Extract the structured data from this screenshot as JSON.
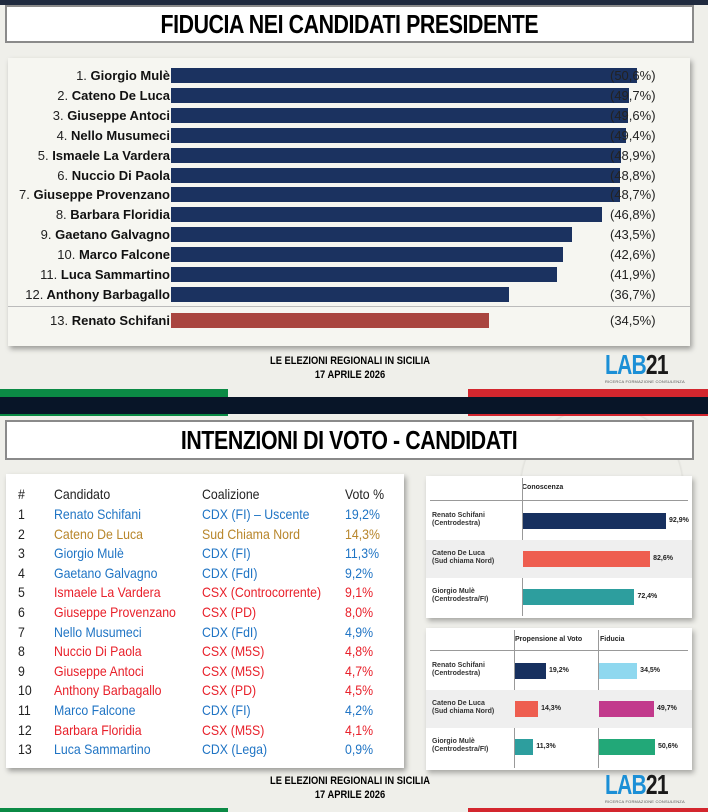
{
  "section1": {
    "title": "FIDUCIA NEI CANDIDATI PRESIDENTE",
    "rows": [
      {
        "rank": "1.",
        "name": "Giorgio Mulè",
        "value": 50.6,
        "label": "(50,6%)"
      },
      {
        "rank": "2.",
        "name": "Cateno De Luca",
        "value": 49.7,
        "label": "(49,7%)"
      },
      {
        "rank": "3.",
        "name": "Giuseppe Antoci",
        "value": 49.6,
        "label": "(49,6%)"
      },
      {
        "rank": "4.",
        "name": "Nello Musumeci",
        "value": 49.4,
        "label": "(49,4%)"
      },
      {
        "rank": "5.",
        "name": "Ismaele La Vardera",
        "value": 48.9,
        "label": "(48,9%)"
      },
      {
        "rank": "6.",
        "name": "Nuccio Di Paola",
        "value": 48.8,
        "label": "(48,8%)"
      },
      {
        "rank": "7.",
        "name": "Giuseppe Provenzano",
        "value": 48.7,
        "label": "(48,7%)"
      },
      {
        "rank": "8.",
        "name": "Barbara Floridia",
        "value": 46.8,
        "label": "(46,8%)"
      },
      {
        "rank": "9.",
        "name": "Gaetano Galvagno",
        "value": 43.5,
        "label": "(43,5%)"
      },
      {
        "rank": "10.",
        "name": "Marco Falcone",
        "value": 42.6,
        "label": "(42,6%)"
      },
      {
        "rank": "11.",
        "name": "Luca Sammartino",
        "value": 41.9,
        "label": "(41,9%)"
      },
      {
        "rank": "12.",
        "name": "Anthony Barbagallo",
        "value": 36.7,
        "label": "(36,7%)"
      },
      {
        "rank": "13.",
        "name": "Renato Schifani",
        "value": 34.5,
        "label": "(34,5%)"
      }
    ],
    "footer_line1": "LE ELEZIONI REGIONALI IN SICILIA",
    "footer_line2": "17 APRILE 2026"
  },
  "section2": {
    "title": "INTENZIONI DI VOTO - CANDIDATI",
    "table": {
      "headers": {
        "num": "#",
        "name": "Candidato",
        "coalition": "Coalizione",
        "vote": "Voto %"
      },
      "rows": [
        {
          "num": "1",
          "name": "Renato Schifani",
          "coalition": "CDX (FI) – Uscente",
          "vote": "19,2%",
          "color": "#1f74c4"
        },
        {
          "num": "2",
          "name": "Cateno De Luca",
          "coalition": "Sud Chiama Nord",
          "vote": "14,3%",
          "color": "#b8862b"
        },
        {
          "num": "3",
          "name": "Giorgio Mulè",
          "coalition": "CDX (FI)",
          "vote": "11,3%",
          "color": "#1f74c4"
        },
        {
          "num": "4",
          "name": "Gaetano Galvagno",
          "coalition": "CDX (FdI)",
          "vote": "9,2%",
          "color": "#1f74c4"
        },
        {
          "num": "5",
          "name": "Ismaele La Vardera",
          "coalition": "CSX (Controcorrente)",
          "vote": "9,1%",
          "color": "#e8202a"
        },
        {
          "num": "6",
          "name": "Giuseppe Provenzano",
          "coalition": "CSX (PD)",
          "vote": "8,0%",
          "color": "#e8202a"
        },
        {
          "num": "7",
          "name": "Nello Musumeci",
          "coalition": "CDX (FdI)",
          "vote": "4,9%",
          "color": "#1f74c4"
        },
        {
          "num": "8",
          "name": "Nuccio Di Paola",
          "coalition": "CSX (M5S)",
          "vote": "4,8%",
          "color": "#e8202a"
        },
        {
          "num": "9",
          "name": "Giuseppe Antoci",
          "coalition": "CSX (M5S)",
          "vote": "4,7%",
          "color": "#e8202a"
        },
        {
          "num": "10",
          "name": "Anthony Barbagallo",
          "coalition": "CSX (PD)",
          "vote": "4,5%",
          "color": "#e8202a"
        },
        {
          "num": "11",
          "name": "Marco Falcone",
          "coalition": "CDX (FI)",
          "vote": "4,2%",
          "color": "#1f74c4"
        },
        {
          "num": "12",
          "name": "Barbara Floridia",
          "coalition": "CSX (M5S)",
          "vote": "4,1%",
          "color": "#e8202a"
        },
        {
          "num": "13",
          "name": "Luca Sammartino",
          "coalition": "CDX (Lega)",
          "vote": "0,9%",
          "color": "#1f74c4"
        }
      ]
    },
    "mini_conoscenza": {
      "header": "Conoscenza",
      "rows": [
        {
          "name": "Renato Schifani",
          "sub": "(Centrodestra)",
          "value": 92.9,
          "label": "92,9%",
          "color": "#17305f"
        },
        {
          "name": "Cateno De Luca",
          "sub": "(Sud chiama Nord)",
          "value": 82.6,
          "label": "82,6%",
          "color": "#ee5e50"
        },
        {
          "name": "Giorgio Mulè",
          "sub": "(Centrodestra/FI)",
          "value": 72.4,
          "label": "72,4%",
          "color": "#2d9e9e"
        }
      ]
    },
    "mini_propensione": {
      "header_vote": "Propensione al Voto",
      "header_trust": "Fiducia",
      "rows": [
        {
          "name": "Renato Schifani",
          "sub": "(Centrodestra)",
          "vote": 19.2,
          "vote_label": "19,2%",
          "vote_color": "#17305f",
          "trust": 34.5,
          "trust_label": "34,5%",
          "trust_color": "#8fd8ef"
        },
        {
          "name": "Cateno De Luca",
          "sub": "(Sud chiama Nord)",
          "vote": 14.3,
          "vote_label": "14,3%",
          "vote_color": "#ee5e50",
          "trust": 49.7,
          "trust_label": "49,7%",
          "trust_color": "#c23a8c"
        },
        {
          "name": "Giorgio Mulè",
          "sub": "(Centrodestra/FI)",
          "vote": 11.3,
          "vote_label": "11,3%",
          "vote_color": "#2d9e9e",
          "trust": 50.6,
          "trust_label": "50,6%",
          "trust_color": "#22a878"
        }
      ]
    },
    "footer_line1": "LE ELEZIONI REGIONALI IN SICILIA",
    "footer_line2": "17 APRILE 2026"
  },
  "logo": {
    "lab": "LAB",
    "num": "21",
    "tagline": "RICERCA FORMAZIONE CONSULENZA",
    "color_lab": "#1b8fd6"
  },
  "colors": {
    "navy_bar": "#1b3260",
    "highlight_bar": "#a9453f",
    "flag_green": "#0b8a45",
    "flag_red": "#d3262e",
    "band": "#081528"
  },
  "chart_data": [
    {
      "type": "bar",
      "orientation": "horizontal",
      "title": "FIDUCIA NEI CANDIDATI PRESIDENTE",
      "categories": [
        "1. Giorgio Mulè",
        "2. Cateno De Luca",
        "3. Giuseppe Antoci",
        "4. Nello Musumeci",
        "5. Ismaele La Vardera",
        "6. Nuccio Di Paola",
        "7. Giuseppe Provenzano",
        "8. Barbara Floridia",
        "9. Gaetano Galvagno",
        "10. Marco Falcone",
        "11. Luca Sammartino",
        "12. Anthony Barbagallo",
        "13. Renato Schifani"
      ],
      "values": [
        50.6,
        49.7,
        49.6,
        49.4,
        48.9,
        48.8,
        48.7,
        46.8,
        43.5,
        42.6,
        41.9,
        36.7,
        34.5
      ],
      "unit": "%",
      "highlight": "13. Renato Schifani",
      "xlabel": "",
      "ylabel": ""
    },
    {
      "type": "table",
      "title": "INTENZIONI DI VOTO - CANDIDATI",
      "columns": [
        "#",
        "Candidato",
        "Coalizione",
        "Voto %"
      ],
      "rows": [
        [
          "1",
          "Renato Schifani",
          "CDX (FI) – Uscente",
          19.2
        ],
        [
          "2",
          "Cateno De Luca",
          "Sud Chiama Nord",
          14.3
        ],
        [
          "3",
          "Giorgio Mulè",
          "CDX (FI)",
          11.3
        ],
        [
          "4",
          "Gaetano Galvagno",
          "CDX (FdI)",
          9.2
        ],
        [
          "5",
          "Ismaele La Vardera",
          "CSX (Controcorrente)",
          9.1
        ],
        [
          "6",
          "Giuseppe Provenzano",
          "CSX (PD)",
          8.0
        ],
        [
          "7",
          "Nello Musumeci",
          "CDX (FdI)",
          4.9
        ],
        [
          "8",
          "Nuccio Di Paola",
          "CSX (M5S)",
          4.8
        ],
        [
          "9",
          "Giuseppe Antoci",
          "CSX (M5S)",
          4.7
        ],
        [
          "10",
          "Anthony Barbagallo",
          "CSX (PD)",
          4.5
        ],
        [
          "11",
          "Marco Falcone",
          "CDX (FI)",
          4.2
        ],
        [
          "12",
          "Barbara Floridia",
          "CSX (M5S)",
          4.1
        ],
        [
          "13",
          "Luca Sammartino",
          "CDX (Lega)",
          0.9
        ]
      ]
    },
    {
      "type": "bar",
      "orientation": "horizontal",
      "title": "Conoscenza",
      "categories": [
        "Renato Schifani (Centrodestra)",
        "Cateno De Luca (Sud chiama Nord)",
        "Giorgio Mulè (Centrodestra/FI)"
      ],
      "values": [
        92.9,
        82.6,
        72.4
      ],
      "unit": "%"
    },
    {
      "type": "bar",
      "orientation": "horizontal",
      "title": "Propensione al Voto / Fiducia",
      "categories": [
        "Renato Schifani (Centrodestra)",
        "Cateno De Luca (Sud chiama Nord)",
        "Giorgio Mulè (Centrodestra/FI)"
      ],
      "series": [
        {
          "name": "Propensione al Voto",
          "values": [
            19.2,
            14.3,
            11.3
          ]
        },
        {
          "name": "Fiducia",
          "values": [
            34.5,
            49.7,
            50.6
          ]
        }
      ],
      "unit": "%"
    }
  ]
}
